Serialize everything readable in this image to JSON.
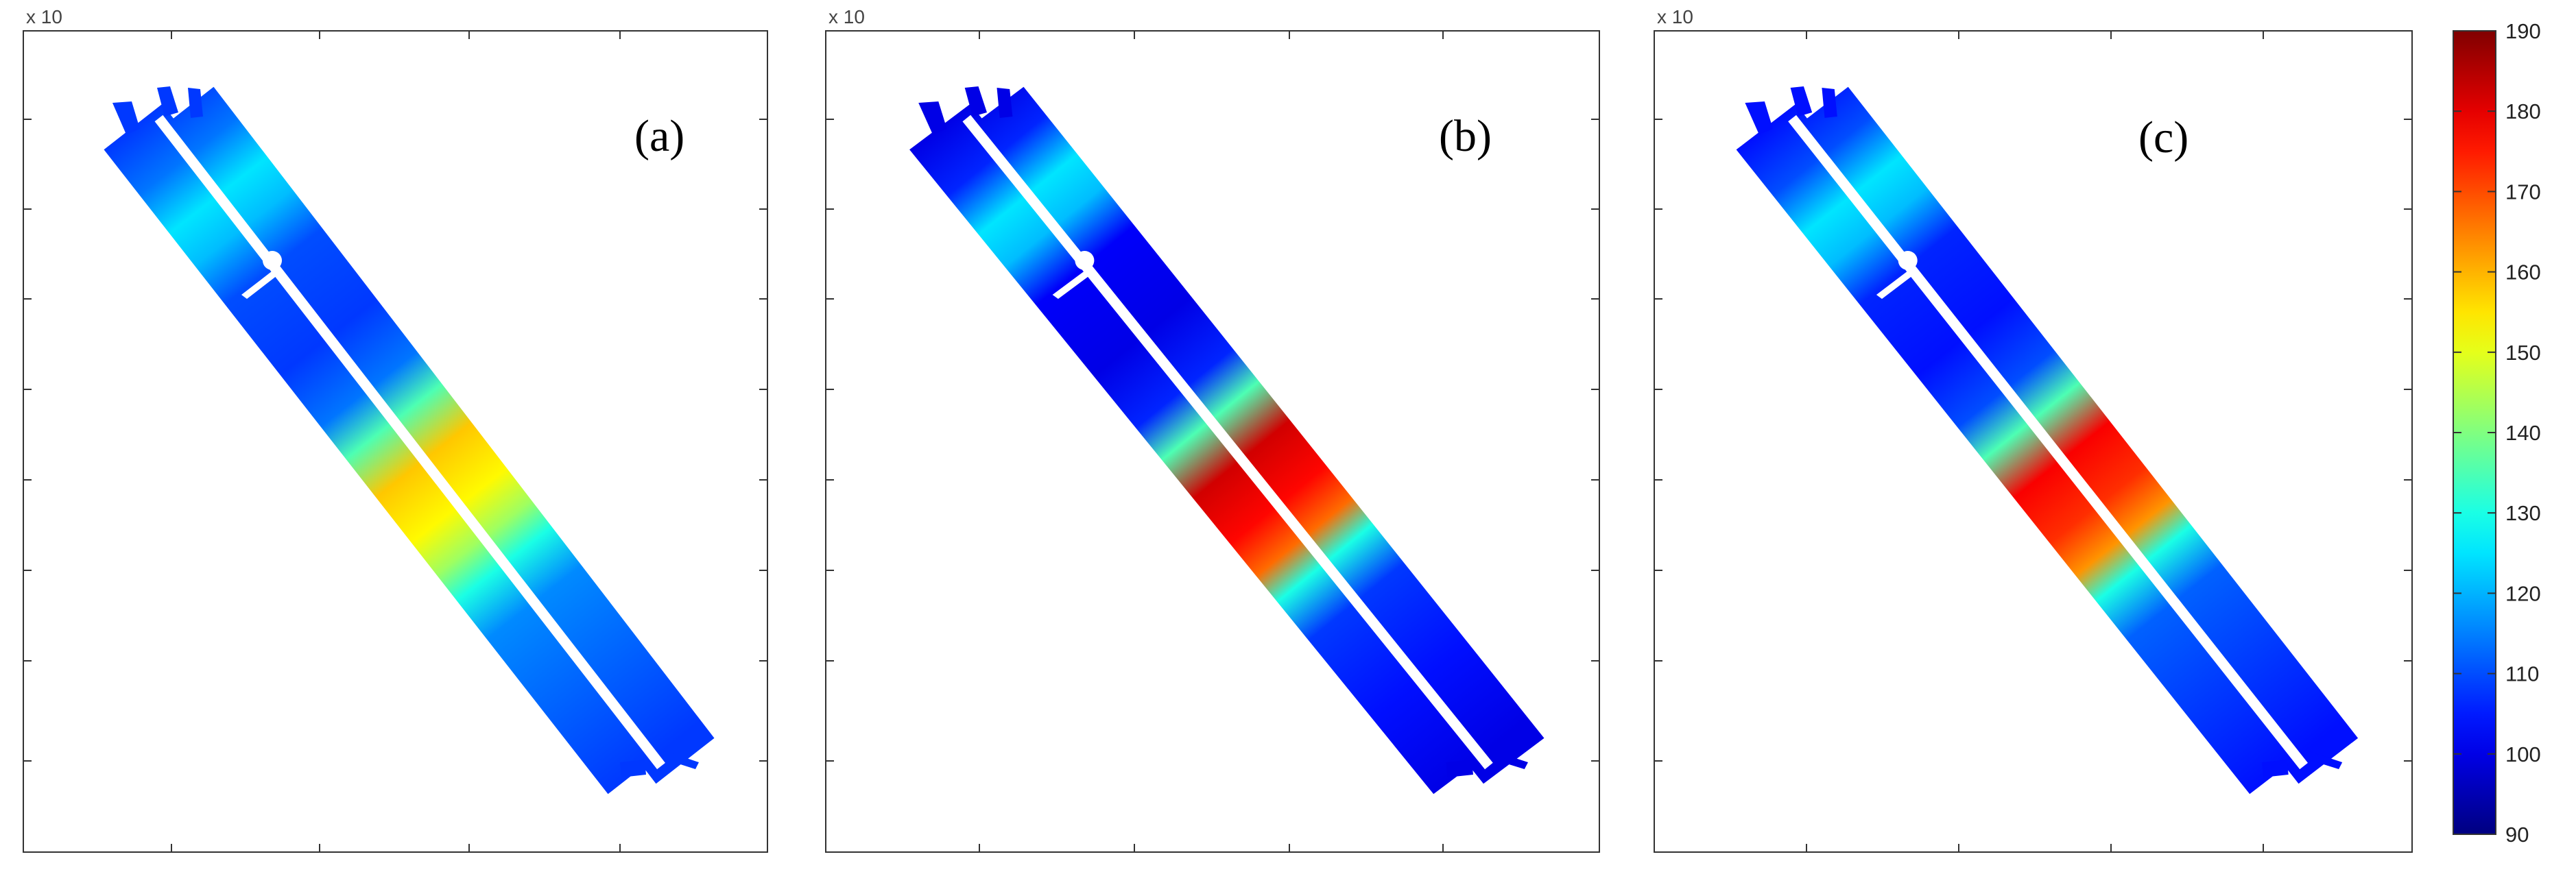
{
  "figure": {
    "panels": [
      {
        "label": "(a)",
        "axis_offset_label": "x 10",
        "hot_value": 158,
        "hot_color_note": "yellow-green"
      },
      {
        "label": "(b)",
        "axis_offset_label": "x 10",
        "hot_value": 182,
        "hot_color_note": "red"
      },
      {
        "label": "(c)",
        "axis_offset_label": "x 10",
        "hot_value": 178,
        "hot_color_note": "red"
      }
    ],
    "colormap": "jet"
  },
  "chart_data": {
    "type": "heatmap",
    "colorbar": {
      "range": [
        90,
        190
      ],
      "ticks": [
        90,
        100,
        110,
        120,
        130,
        140,
        150,
        160,
        170,
        180,
        190
      ],
      "colormap": "jet"
    },
    "panels": [
      {
        "label": "(a)",
        "background_value": 108,
        "upper_segment_value": 125,
        "peak_value": 158
      },
      {
        "label": "(b)",
        "background_value": 100,
        "upper_segment_value": 125,
        "peak_value": 182
      },
      {
        "label": "(c)",
        "background_value": 104,
        "upper_segment_value": 125,
        "peak_value": 178
      }
    ],
    "grid": false,
    "legend": "colorbar right"
  }
}
